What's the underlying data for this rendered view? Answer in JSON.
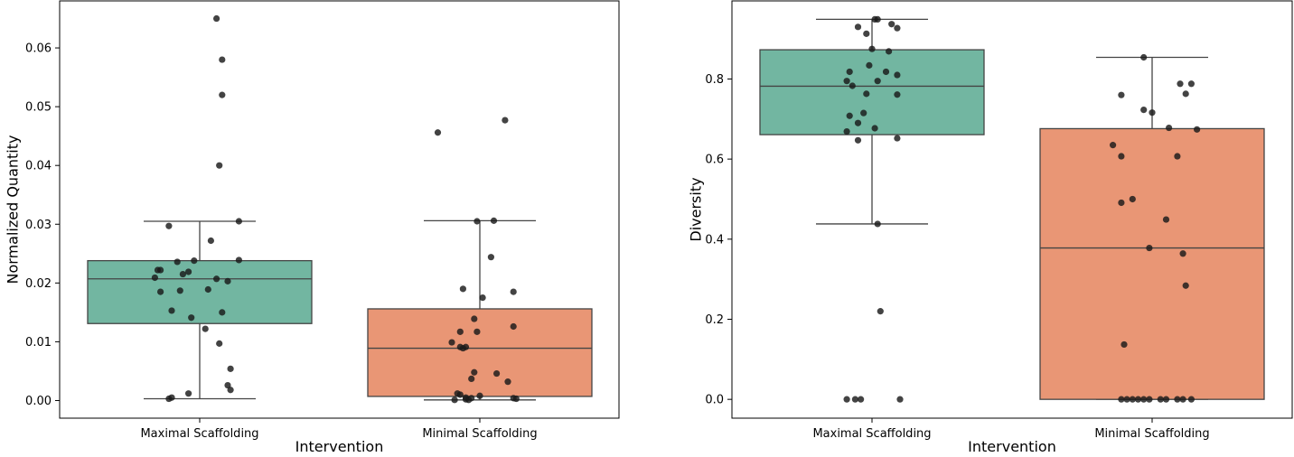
{
  "chart_data": [
    {
      "type": "box",
      "title": "",
      "xlabel": "Intervention",
      "ylabel": "Normalized Quantity",
      "categories": [
        "Maximal Scaffolding",
        "Minimal Scaffolding"
      ],
      "ylim": [
        -0.003,
        0.068
      ],
      "yticks": [
        0.0,
        0.01,
        0.02,
        0.03,
        0.04,
        0.05,
        0.06
      ],
      "ytick_labels": [
        "0.00",
        "0.01",
        "0.02",
        "0.03",
        "0.04",
        "0.05",
        "0.06"
      ],
      "grid": false,
      "box_colors": [
        "#72b6a1",
        "#e99675"
      ],
      "boxes": [
        {
          "q1": 0.0131,
          "median": 0.0207,
          "q3": 0.0238,
          "whisker_low": 0.0003,
          "whisker_high": 0.0305
        },
        {
          "q1": 0.0007,
          "median": 0.0089,
          "q3": 0.0156,
          "whisker_low": 0.0001,
          "whisker_high": 0.0306
        }
      ],
      "points": [
        [
          {
            "x": 0.06,
            "y": 0.065
          },
          {
            "x": 0.08,
            "y": 0.058
          },
          {
            "x": 0.08,
            "y": 0.052
          },
          {
            "x": 0.07,
            "y": 0.04
          },
          {
            "x": 0.14,
            "y": 0.0305
          },
          {
            "x": -0.11,
            "y": 0.0297
          },
          {
            "x": 0.04,
            "y": 0.0272
          },
          {
            "x": 0.14,
            "y": 0.0239
          },
          {
            "x": -0.02,
            "y": 0.0238
          },
          {
            "x": -0.08,
            "y": 0.0236
          },
          {
            "x": -0.15,
            "y": 0.0222
          },
          {
            "x": -0.14,
            "y": 0.0222
          },
          {
            "x": -0.04,
            "y": 0.0219
          },
          {
            "x": -0.06,
            "y": 0.0215
          },
          {
            "x": -0.16,
            "y": 0.0209
          },
          {
            "x": 0.06,
            "y": 0.0207
          },
          {
            "x": 0.1,
            "y": 0.0203
          },
          {
            "x": 0.03,
            "y": 0.0189
          },
          {
            "x": -0.07,
            "y": 0.0187
          },
          {
            "x": -0.14,
            "y": 0.0185
          },
          {
            "x": -0.1,
            "y": 0.0153
          },
          {
            "x": 0.08,
            "y": 0.015
          },
          {
            "x": -0.03,
            "y": 0.0141
          },
          {
            "x": 0.02,
            "y": 0.0122
          },
          {
            "x": 0.07,
            "y": 0.0097
          },
          {
            "x": 0.11,
            "y": 0.0054
          },
          {
            "x": 0.1,
            "y": 0.0026
          },
          {
            "x": 0.11,
            "y": 0.0018
          },
          {
            "x": -0.04,
            "y": 0.0012
          },
          {
            "x": -0.1,
            "y": 0.0005
          },
          {
            "x": -0.11,
            "y": 0.0003
          }
        ],
        [
          {
            "x": 0.09,
            "y": 0.0477
          },
          {
            "x": -0.15,
            "y": 0.0456
          },
          {
            "x": -0.01,
            "y": 0.0305
          },
          {
            "x": 0.05,
            "y": 0.0306
          },
          {
            "x": 0.04,
            "y": 0.0244
          },
          {
            "x": -0.06,
            "y": 0.019
          },
          {
            "x": 0.12,
            "y": 0.0185
          },
          {
            "x": 0.01,
            "y": 0.0175
          },
          {
            "x": -0.02,
            "y": 0.0139
          },
          {
            "x": 0.12,
            "y": 0.0126
          },
          {
            "x": -0.07,
            "y": 0.0117
          },
          {
            "x": -0.01,
            "y": 0.0117
          },
          {
            "x": -0.1,
            "y": 0.0099
          },
          {
            "x": -0.07,
            "y": 0.0091
          },
          {
            "x": -0.05,
            "y": 0.0091
          },
          {
            "x": -0.06,
            "y": 0.0089
          },
          {
            "x": -0.02,
            "y": 0.0048
          },
          {
            "x": 0.06,
            "y": 0.0046
          },
          {
            "x": -0.03,
            "y": 0.0037
          },
          {
            "x": 0.1,
            "y": 0.0032
          },
          {
            "x": -0.08,
            "y": 0.0012
          },
          {
            "x": -0.07,
            "y": 0.001
          },
          {
            "x": 0.0,
            "y": 0.0008
          },
          {
            "x": -0.05,
            "y": 0.0005
          },
          {
            "x": 0.12,
            "y": 0.0004
          },
          {
            "x": 0.13,
            "y": 0.0003
          },
          {
            "x": -0.03,
            "y": 0.0004
          },
          {
            "x": -0.05,
            "y": 0.0002
          },
          {
            "x": -0.09,
            "y": 0.0001
          },
          {
            "x": -0.04,
            "y": 0.0001
          }
        ]
      ]
    },
    {
      "type": "box",
      "title": "",
      "xlabel": "Intervention",
      "ylabel": "Diversity",
      "categories": [
        "Maximal Scaffolding",
        "Minimal Scaffolding"
      ],
      "ylim": [
        -0.047,
        0.995
      ],
      "yticks": [
        0.0,
        0.2,
        0.4,
        0.6,
        0.8
      ],
      "ytick_labels": [
        "0.0",
        "0.2",
        "0.4",
        "0.6",
        "0.8"
      ],
      "grid": false,
      "box_colors": [
        "#72b6a1",
        "#e99675"
      ],
      "boxes": [
        {
          "q1": 0.661,
          "median": 0.782,
          "q3": 0.873,
          "whisker_low": 0.438,
          "whisker_high": 0.949
        },
        {
          "q1": 0.0,
          "median": 0.378,
          "q3": 0.676,
          "whisker_low": 0.0,
          "whisker_high": 0.854
        }
      ],
      "points": [
        [
          {
            "x": 0.01,
            "y": 0.949
          },
          {
            "x": 0.02,
            "y": 0.949
          },
          {
            "x": 0.07,
            "y": 0.937
          },
          {
            "x": 0.09,
            "y": 0.927
          },
          {
            "x": -0.05,
            "y": 0.93
          },
          {
            "x": -0.02,
            "y": 0.913
          },
          {
            "x": 0.0,
            "y": 0.875
          },
          {
            "x": 0.06,
            "y": 0.869
          },
          {
            "x": -0.01,
            "y": 0.834
          },
          {
            "x": -0.08,
            "y": 0.818
          },
          {
            "x": 0.05,
            "y": 0.818
          },
          {
            "x": 0.09,
            "y": 0.81
          },
          {
            "x": -0.09,
            "y": 0.795
          },
          {
            "x": 0.02,
            "y": 0.795
          },
          {
            "x": -0.07,
            "y": 0.783
          },
          {
            "x": -0.02,
            "y": 0.763
          },
          {
            "x": 0.09,
            "y": 0.761
          },
          {
            "x": -0.03,
            "y": 0.715
          },
          {
            "x": -0.08,
            "y": 0.708
          },
          {
            "x": -0.05,
            "y": 0.69
          },
          {
            "x": -0.09,
            "y": 0.669
          },
          {
            "x": 0.01,
            "y": 0.677
          },
          {
            "x": 0.09,
            "y": 0.652
          },
          {
            "x": -0.05,
            "y": 0.647
          },
          {
            "x": 0.02,
            "y": 0.438
          },
          {
            "x": 0.03,
            "y": 0.22
          },
          {
            "x": -0.09,
            "y": 0.0
          },
          {
            "x": -0.06,
            "y": 0.0
          },
          {
            "x": -0.04,
            "y": 0.0
          },
          {
            "x": 0.1,
            "y": 0.0
          }
        ],
        [
          {
            "x": -0.03,
            "y": 0.854
          },
          {
            "x": 0.1,
            "y": 0.788
          },
          {
            "x": 0.14,
            "y": 0.788
          },
          {
            "x": 0.12,
            "y": 0.763
          },
          {
            "x": -0.11,
            "y": 0.76
          },
          {
            "x": -0.03,
            "y": 0.723
          },
          {
            "x": 0.0,
            "y": 0.716
          },
          {
            "x": 0.06,
            "y": 0.678
          },
          {
            "x": 0.16,
            "y": 0.674
          },
          {
            "x": -0.14,
            "y": 0.635
          },
          {
            "x": -0.11,
            "y": 0.607
          },
          {
            "x": 0.09,
            "y": 0.607
          },
          {
            "x": -0.07,
            "y": 0.5
          },
          {
            "x": -0.11,
            "y": 0.491
          },
          {
            "x": 0.05,
            "y": 0.449
          },
          {
            "x": -0.01,
            "y": 0.378
          },
          {
            "x": 0.11,
            "y": 0.364
          },
          {
            "x": 0.12,
            "y": 0.284
          },
          {
            "x": -0.1,
            "y": 0.137
          },
          {
            "x": -0.11,
            "y": 0.0
          },
          {
            "x": -0.09,
            "y": 0.0
          },
          {
            "x": -0.07,
            "y": 0.0
          },
          {
            "x": -0.05,
            "y": 0.0
          },
          {
            "x": -0.03,
            "y": 0.0
          },
          {
            "x": -0.01,
            "y": 0.0
          },
          {
            "x": 0.03,
            "y": 0.0
          },
          {
            "x": 0.05,
            "y": 0.0
          },
          {
            "x": 0.09,
            "y": 0.0
          },
          {
            "x": 0.11,
            "y": 0.0
          },
          {
            "x": 0.14,
            "y": 0.0
          }
        ]
      ]
    }
  ]
}
